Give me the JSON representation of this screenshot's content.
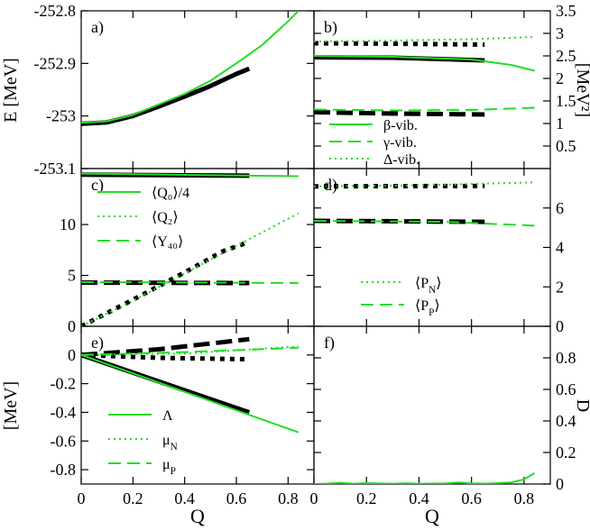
{
  "colors": {
    "green": "#22dd22",
    "black": "#000000"
  },
  "chart_data": [
    {
      "id": "a",
      "type": "line",
      "panel_label": "a)",
      "ylabel": "E [MeV]",
      "ylim": [
        -253.1,
        -252.8
      ],
      "yticks": [
        -253.1,
        -253.0,
        -252.9,
        -252.8
      ],
      "yticklabels": [
        "-253.1",
        "-253",
        "-252.9",
        "-252.8"
      ],
      "series": [
        {
          "color": "#000000",
          "style": "solid",
          "width": "thick",
          "points": [
            [
              0,
              -253.015
            ],
            [
              0.1,
              -253.012
            ],
            [
              0.2,
              -253.0
            ],
            [
              0.3,
              -252.982
            ],
            [
              0.4,
              -252.963
            ],
            [
              0.5,
              -252.943
            ],
            [
              0.6,
              -252.92
            ],
            [
              0.65,
              -252.91
            ]
          ]
        },
        {
          "color": "#22dd22",
          "style": "solid",
          "width": "normal",
          "points": [
            [
              0,
              -253.013
            ],
            [
              0.1,
              -253.01
            ],
            [
              0.2,
              -252.998
            ],
            [
              0.3,
              -252.978
            ],
            [
              0.4,
              -252.958
            ],
            [
              0.5,
              -252.933
            ],
            [
              0.6,
              -252.9
            ],
            [
              0.7,
              -252.865
            ],
            [
              0.8,
              -252.82
            ],
            [
              0.84,
              -252.8
            ]
          ]
        }
      ]
    },
    {
      "id": "b",
      "type": "line",
      "panel_label": "b)",
      "ylabel": "[MeV²]",
      "ylim": [
        0,
        3.5
      ],
      "yticks": [
        0.5,
        1,
        1.5,
        2,
        2.5,
        3,
        3.5
      ],
      "yticklabels": [
        "0.5",
        "1",
        "1.5",
        "2",
        "2.5",
        "3",
        "3.5"
      ],
      "legend": [
        {
          "label": "β-vib.",
          "style": "solid"
        },
        {
          "label": "γ-vib.",
          "style": "dashed"
        },
        {
          "label": "Δ-vib.",
          "style": "dotted"
        }
      ],
      "series": [
        {
          "color": "#000000",
          "style": "solid",
          "width": "thick",
          "points": [
            [
              0,
              2.47
            ],
            [
              0.3,
              2.46
            ],
            [
              0.65,
              2.4
            ]
          ]
        },
        {
          "color": "#000000",
          "style": "dashed",
          "width": "thick",
          "points": [
            [
              0,
              1.25
            ],
            [
              0.3,
              1.22
            ],
            [
              0.65,
              1.2
            ]
          ]
        },
        {
          "color": "#000000",
          "style": "dotted",
          "width": "thick",
          "points": [
            [
              0,
              2.78
            ],
            [
              0.3,
              2.77
            ],
            [
              0.65,
              2.75
            ]
          ]
        },
        {
          "color": "#22dd22",
          "style": "solid",
          "width": "normal",
          "points": [
            [
              0,
              2.5
            ],
            [
              0.3,
              2.48
            ],
            [
              0.6,
              2.42
            ],
            [
              0.75,
              2.3
            ],
            [
              0.84,
              2.17
            ]
          ]
        },
        {
          "color": "#22dd22",
          "style": "dashed",
          "width": "normal",
          "points": [
            [
              0,
              1.31
            ],
            [
              0.3,
              1.29
            ],
            [
              0.6,
              1.3
            ],
            [
              0.84,
              1.35
            ]
          ]
        },
        {
          "color": "#22dd22",
          "style": "dotted",
          "width": "normal",
          "points": [
            [
              0,
              2.82
            ],
            [
              0.3,
              2.84
            ],
            [
              0.6,
              2.87
            ],
            [
              0.84,
              2.92
            ]
          ]
        }
      ]
    },
    {
      "id": "c",
      "type": "line",
      "panel_label": "c)",
      "ylim": [
        0,
        15.5
      ],
      "yticks": [
        0,
        5,
        10
      ],
      "yticklabels": [
        "0",
        "5",
        "10"
      ],
      "legend": [
        {
          "label": "⟨Q₀⟩/4",
          "style": "solid"
        },
        {
          "label": "⟨Q₂⟩",
          "style": "dotted"
        },
        {
          "label": "⟨Y₄₀⟩",
          "style": "dashed"
        }
      ],
      "series": [
        {
          "color": "#000000",
          "style": "solid",
          "width": "thick",
          "points": [
            [
              0,
              14.9
            ],
            [
              0.65,
              14.8
            ]
          ]
        },
        {
          "color": "#000000",
          "style": "dotted",
          "width": "thick",
          "points": [
            [
              0,
              0
            ],
            [
              0.2,
              2.6
            ],
            [
              0.4,
              5.3
            ],
            [
              0.55,
              7.4
            ],
            [
              0.65,
              8.3
            ]
          ]
        },
        {
          "color": "#000000",
          "style": "dashed",
          "width": "thick",
          "points": [
            [
              0,
              4.3
            ],
            [
              0.65,
              4.25
            ]
          ]
        },
        {
          "color": "#22dd22",
          "style": "solid",
          "width": "normal",
          "points": [
            [
              0,
              15.0
            ],
            [
              0.84,
              14.75
            ]
          ]
        },
        {
          "color": "#22dd22",
          "style": "dotted",
          "width": "normal",
          "points": [
            [
              0,
              0
            ],
            [
              0.2,
              2.5
            ],
            [
              0.4,
              5.2
            ],
            [
              0.6,
              7.9
            ],
            [
              0.84,
              11.1
            ]
          ]
        },
        {
          "color": "#22dd22",
          "style": "dashed",
          "width": "normal",
          "points": [
            [
              0,
              4.35
            ],
            [
              0.84,
              4.25
            ]
          ]
        }
      ]
    },
    {
      "id": "d",
      "type": "line",
      "panel_label": "d)",
      "ylim": [
        0,
        8
      ],
      "yticks": [
        0,
        2,
        4,
        6
      ],
      "yticklabels": [
        "0",
        "2",
        "4",
        "6"
      ],
      "legend": [
        {
          "label": "⟨P_N⟩",
          "style": "dotted"
        },
        {
          "label": "⟨P_P⟩",
          "style": "dashed"
        }
      ],
      "series": [
        {
          "color": "#000000",
          "style": "dotted",
          "width": "thick",
          "points": [
            [
              0,
              7.1
            ],
            [
              0.65,
              7.12
            ]
          ]
        },
        {
          "color": "#000000",
          "style": "dashed",
          "width": "thick",
          "points": [
            [
              0,
              5.35
            ],
            [
              0.65,
              5.3
            ]
          ]
        },
        {
          "color": "#22dd22",
          "style": "dotted",
          "width": "normal",
          "points": [
            [
              0,
              7.1
            ],
            [
              0.4,
              7.15
            ],
            [
              0.84,
              7.3
            ]
          ]
        },
        {
          "color": "#22dd22",
          "style": "dashed",
          "width": "normal",
          "points": [
            [
              0,
              5.35
            ],
            [
              0.5,
              5.3
            ],
            [
              0.84,
              5.1
            ]
          ]
        }
      ]
    },
    {
      "id": "e",
      "type": "line",
      "panel_label": "e)",
      "ylabel": "[MeV]",
      "ylim": [
        -0.9,
        0.2
      ],
      "yticks": [
        -0.8,
        -0.6,
        -0.4,
        -0.2,
        0
      ],
      "yticklabels": [
        "-0.8",
        "-0.6",
        "-0.4",
        "-0.2",
        "0"
      ],
      "xlabel": "Q",
      "xlim": [
        0,
        0.9
      ],
      "xticks": [
        0,
        0.2,
        0.4,
        0.6,
        0.8
      ],
      "xticklabels": [
        "0",
        "0.2",
        "0.4",
        "0.6",
        "0.8"
      ],
      "legend": [
        {
          "label": "Λ",
          "style": "solid"
        },
        {
          "label": "μ_N",
          "style": "dotted"
        },
        {
          "label": "μ_P",
          "style": "dashed"
        }
      ],
      "series": [
        {
          "color": "#000000",
          "style": "solid",
          "width": "thick",
          "points": [
            [
              0,
              0
            ],
            [
              0.65,
              -0.4
            ]
          ]
        },
        {
          "color": "#000000",
          "style": "dashed",
          "width": "thick",
          "points": [
            [
              0,
              0
            ],
            [
              0.3,
              0.04
            ],
            [
              0.65,
              0.11
            ]
          ]
        },
        {
          "color": "#000000",
          "style": "dotted",
          "width": "thick",
          "points": [
            [
              0,
              0
            ],
            [
              0.3,
              -0.02
            ],
            [
              0.65,
              -0.03
            ]
          ]
        },
        {
          "color": "#22dd22",
          "style": "solid",
          "width": "normal",
          "points": [
            [
              0,
              0
            ],
            [
              0.84,
              -0.54
            ]
          ]
        },
        {
          "color": "#22dd22",
          "style": "dotted",
          "width": "normal",
          "points": [
            [
              0,
              0
            ],
            [
              0.4,
              0.01
            ],
            [
              0.84,
              0.06
            ]
          ]
        },
        {
          "color": "#22dd22",
          "style": "dashed",
          "width": "normal",
          "points": [
            [
              0,
              0
            ],
            [
              0.4,
              0.02
            ],
            [
              0.84,
              0.05
            ]
          ]
        }
      ]
    },
    {
      "id": "f",
      "type": "line",
      "panel_label": "f)",
      "ylabel": "D",
      "ylim": [
        0,
        1.0
      ],
      "yticks": [
        0,
        0.2,
        0.4,
        0.6,
        0.8
      ],
      "yticklabels": [
        "0",
        "0.2",
        "0.4",
        "0.6",
        "0.8"
      ],
      "xlabel": "Q",
      "xlim": [
        0,
        0.9
      ],
      "xticks": [
        0,
        0.2,
        0.4,
        0.6,
        0.8
      ],
      "xticklabels": [
        "0",
        "0.2",
        "0.4",
        "0.6",
        "0.8"
      ],
      "series": [
        {
          "color": "#22dd22",
          "style": "solid",
          "width": "normal",
          "points": [
            [
              0,
              0
            ],
            [
              0.05,
              0.003
            ],
            [
              0.1,
              0.008
            ],
            [
              0.15,
              0.002
            ],
            [
              0.2,
              0.006
            ],
            [
              0.3,
              0.002
            ],
            [
              0.35,
              0.005
            ],
            [
              0.4,
              0.002
            ],
            [
              0.5,
              0.004
            ],
            [
              0.55,
              0.01
            ],
            [
              0.6,
              0.004
            ],
            [
              0.65,
              0.003
            ],
            [
              0.7,
              0.006
            ],
            [
              0.75,
              0.01
            ],
            [
              0.8,
              0.03
            ],
            [
              0.84,
              0.07
            ]
          ]
        }
      ]
    }
  ]
}
